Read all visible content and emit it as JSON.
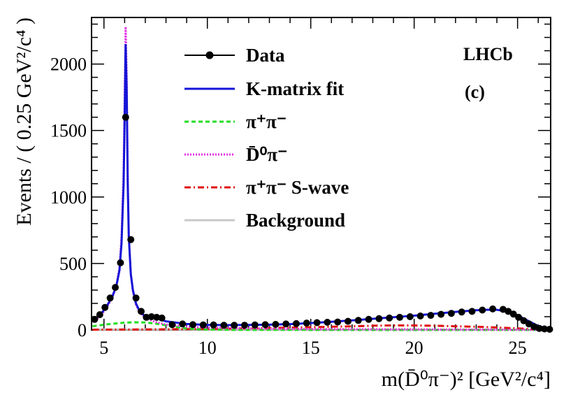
{
  "chart_data": {
    "type": "line",
    "title": "",
    "xlabel": "m(D̄⁰π⁻)² [GeV²/c⁴]",
    "ylabel": "Events / ( 0.25 GeV²/c⁴ )",
    "xlim": [
      4.4,
      26.6
    ],
    "ylim": [
      0,
      2350
    ],
    "xticks": [
      "5",
      "10",
      "15",
      "20",
      "25"
    ],
    "yticks": [
      "0",
      "500",
      "1000",
      "1500",
      "2000"
    ],
    "annotations": [
      "LHCb",
      "(c)"
    ],
    "legend": [
      {
        "key": "data",
        "label": "Data"
      },
      {
        "key": "fit",
        "label": "K-matrix fit"
      },
      {
        "key": "pipi",
        "label": "π⁺π⁻"
      },
      {
        "key": "dpi",
        "label": "D̄⁰π⁻"
      },
      {
        "key": "swave",
        "label": "π⁺π⁻ S-wave"
      },
      {
        "key": "bkg",
        "label": "Background"
      }
    ],
    "colors": {
      "data": "#000000",
      "fit": "#1414d6",
      "pipi": "#22dd22",
      "dpi": "#e22ee2",
      "swave": "#e01010",
      "bkg": "#c8c8c8"
    },
    "data_points": {
      "x": [
        4.55,
        4.8,
        5.05,
        5.3,
        5.55,
        5.8,
        6.05,
        6.3,
        6.55,
        6.8,
        7.05,
        7.3,
        7.55,
        7.8,
        8.3,
        8.8,
        9.3,
        9.8,
        10.3,
        10.8,
        11.3,
        11.8,
        12.3,
        12.8,
        13.3,
        13.8,
        14.3,
        14.8,
        15.3,
        15.8,
        16.3,
        16.8,
        17.3,
        17.8,
        18.3,
        18.8,
        19.3,
        19.8,
        20.3,
        20.8,
        21.3,
        21.8,
        22.3,
        22.8,
        23.3,
        23.8,
        24.3,
        24.55,
        24.8,
        25.05,
        25.3,
        25.55,
        25.8,
        26.05,
        26.3,
        26.55
      ],
      "y": [
        80,
        115,
        170,
        240,
        320,
        505,
        1600,
        680,
        240,
        140,
        95,
        100,
        95,
        90,
        40,
        45,
        40,
        38,
        38,
        35,
        35,
        36,
        38,
        40,
        42,
        45,
        48,
        52,
        55,
        58,
        60,
        65,
        72,
        80,
        85,
        90,
        95,
        100,
        105,
        110,
        118,
        125,
        135,
        140,
        150,
        158,
        155,
        140,
        120,
        95,
        70,
        45,
        25,
        12,
        8,
        5
      ]
    },
    "fit_curve": {
      "x": [
        4.45,
        4.8,
        5.1,
        5.4,
        5.6,
        5.75,
        5.85,
        5.95,
        6.0,
        6.05,
        6.1,
        6.15,
        6.2,
        6.3,
        6.4,
        6.55,
        6.7,
        6.9,
        7.1,
        7.5,
        8.0,
        9.0,
        10.0,
        11.0,
        12.0,
        13.0,
        14.0,
        15.0,
        16.0,
        17.0,
        18.0,
        19.0,
        20.0,
        21.0,
        22.0,
        23.0,
        23.5,
        24.0,
        24.5,
        25.0,
        25.5,
        26.0,
        26.5
      ],
      "y": [
        70,
        110,
        170,
        250,
        330,
        450,
        650,
        1100,
        1600,
        2150,
        1800,
        1100,
        700,
        420,
        300,
        200,
        150,
        115,
        100,
        90,
        65,
        45,
        38,
        37,
        38,
        40,
        44,
        52,
        62,
        72,
        84,
        96,
        108,
        122,
        136,
        148,
        152,
        152,
        140,
        110,
        70,
        30,
        8
      ]
    },
    "dpi_curve": {
      "x": [
        4.45,
        4.8,
        5.1,
        5.4,
        5.6,
        5.75,
        5.85,
        5.95,
        6.0,
        6.05,
        6.1,
        6.15,
        6.2,
        6.3,
        6.4,
        6.55,
        6.7,
        6.9,
        7.1,
        7.5,
        8.0,
        9.0,
        10.0,
        12.0,
        14.0,
        16.0,
        18.0,
        20.0,
        22.0,
        24.0,
        26.5
      ],
      "y": [
        60,
        100,
        160,
        240,
        330,
        470,
        700,
        1200,
        1750,
        2280,
        1900,
        1150,
        720,
        420,
        290,
        190,
        140,
        105,
        85,
        60,
        40,
        25,
        18,
        12,
        8,
        6,
        5,
        4,
        3,
        2,
        1
      ]
    },
    "pipi_curve": {
      "x": [
        4.45,
        5.0,
        5.5,
        6.0,
        6.5,
        7.0,
        7.5,
        8.0,
        8.5,
        9.0,
        9.5,
        10.0,
        11.0,
        12.0,
        14.0,
        16.0,
        18.0,
        20.0,
        22.0,
        24.0,
        26.5
      ],
      "y": [
        28,
        40,
        48,
        55,
        58,
        56,
        48,
        35,
        22,
        12,
        6,
        3,
        1,
        0.5,
        0.3,
        0.2,
        0.2,
        0.2,
        0.1,
        0.1,
        0.1
      ]
    },
    "swave_curve": {
      "x": [
        4.45,
        6.0,
        8.0,
        10.0,
        12.0,
        14.0,
        16.0,
        17.0,
        18.0,
        19.0,
        20.0,
        21.0,
        22.0,
        23.0,
        24.0,
        25.0,
        26.0,
        26.5
      ],
      "y": [
        2,
        3,
        5,
        8,
        12,
        18,
        24,
        28,
        32,
        34,
        34,
        32,
        28,
        24,
        19,
        12,
        4,
        1
      ]
    },
    "bkg_curve": {
      "x": [
        4.45,
        8.0,
        12.0,
        16.0,
        20.0,
        24.0,
        26.5
      ],
      "y": [
        4,
        4,
        3,
        3,
        2,
        2,
        1
      ]
    }
  }
}
